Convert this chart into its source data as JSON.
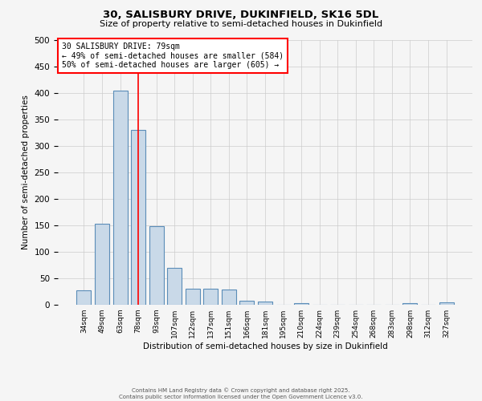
{
  "title1": "30, SALISBURY DRIVE, DUKINFIELD, SK16 5DL",
  "title2": "Size of property relative to semi-detached houses in Dukinfield",
  "xlabel": "Distribution of semi-detached houses by size in Dukinfield",
  "ylabel": "Number of semi-detached properties",
  "categories": [
    "34sqm",
    "49sqm",
    "63sqm",
    "78sqm",
    "93sqm",
    "107sqm",
    "122sqm",
    "137sqm",
    "151sqm",
    "166sqm",
    "181sqm",
    "195sqm",
    "210sqm",
    "224sqm",
    "239sqm",
    "254sqm",
    "268sqm",
    "283sqm",
    "298sqm",
    "312sqm",
    "327sqm"
  ],
  "values": [
    27,
    153,
    405,
    330,
    148,
    70,
    30,
    30,
    29,
    8,
    6,
    0,
    3,
    0,
    0,
    0,
    0,
    0,
    3,
    0,
    4
  ],
  "bar_color": "#c9d9e8",
  "bar_edge_color": "#5b8db8",
  "red_line_index": 3,
  "annotation_title": "30 SALISBURY DRIVE: 79sqm",
  "annotation_line1": "← 49% of semi-detached houses are smaller (584)",
  "annotation_line2": "50% of semi-detached houses are larger (605) →",
  "ylim": [
    0,
    500
  ],
  "yticks": [
    0,
    50,
    100,
    150,
    200,
    250,
    300,
    350,
    400,
    450,
    500
  ],
  "footer": "Contains HM Land Registry data © Crown copyright and database right 2025.\nContains public sector information licensed under the Open Government Licence v3.0.",
  "background_color": "#f5f5f5",
  "grid_color": "#cccccc"
}
